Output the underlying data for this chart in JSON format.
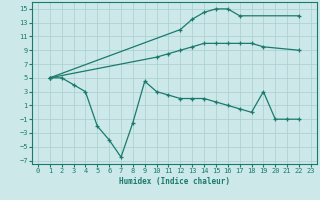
{
  "line1_x": [
    1,
    12,
    13,
    14,
    15,
    16,
    17,
    22
  ],
  "line1_y": [
    5,
    12,
    13.5,
    14.5,
    15,
    15,
    14,
    14
  ],
  "line2_x": [
    1,
    10,
    11,
    12,
    13,
    14,
    15,
    16,
    17,
    18,
    19,
    22
  ],
  "line2_y": [
    5,
    8,
    8.5,
    9,
    9.5,
    10,
    10,
    10,
    10,
    10,
    9.5,
    9
  ],
  "line3_x": [
    1,
    2,
    3,
    4,
    5,
    6,
    7,
    8,
    9,
    10,
    11,
    12,
    13,
    14,
    15,
    16,
    17,
    18,
    19,
    20,
    21,
    22
  ],
  "line3_y": [
    5,
    5,
    4,
    3,
    -2,
    -4,
    -6.5,
    -1.5,
    4.5,
    3,
    2.5,
    2,
    2,
    2,
    1.5,
    1,
    0.5,
    0,
    3,
    -1,
    -1,
    -1
  ],
  "color": "#1a7a6e",
  "bg_color": "#cce8e8",
  "grid_color": "#aacece",
  "xlabel": "Humidex (Indice chaleur)",
  "xlim": [
    -0.5,
    23.5
  ],
  "ylim": [
    -7.5,
    16
  ],
  "yticks": [
    -7,
    -5,
    -3,
    -1,
    1,
    3,
    5,
    7,
    9,
    11,
    13,
    15
  ],
  "xticks": [
    0,
    1,
    2,
    3,
    4,
    5,
    6,
    7,
    8,
    9,
    10,
    11,
    12,
    13,
    14,
    15,
    16,
    17,
    18,
    19,
    20,
    21,
    22,
    23
  ]
}
